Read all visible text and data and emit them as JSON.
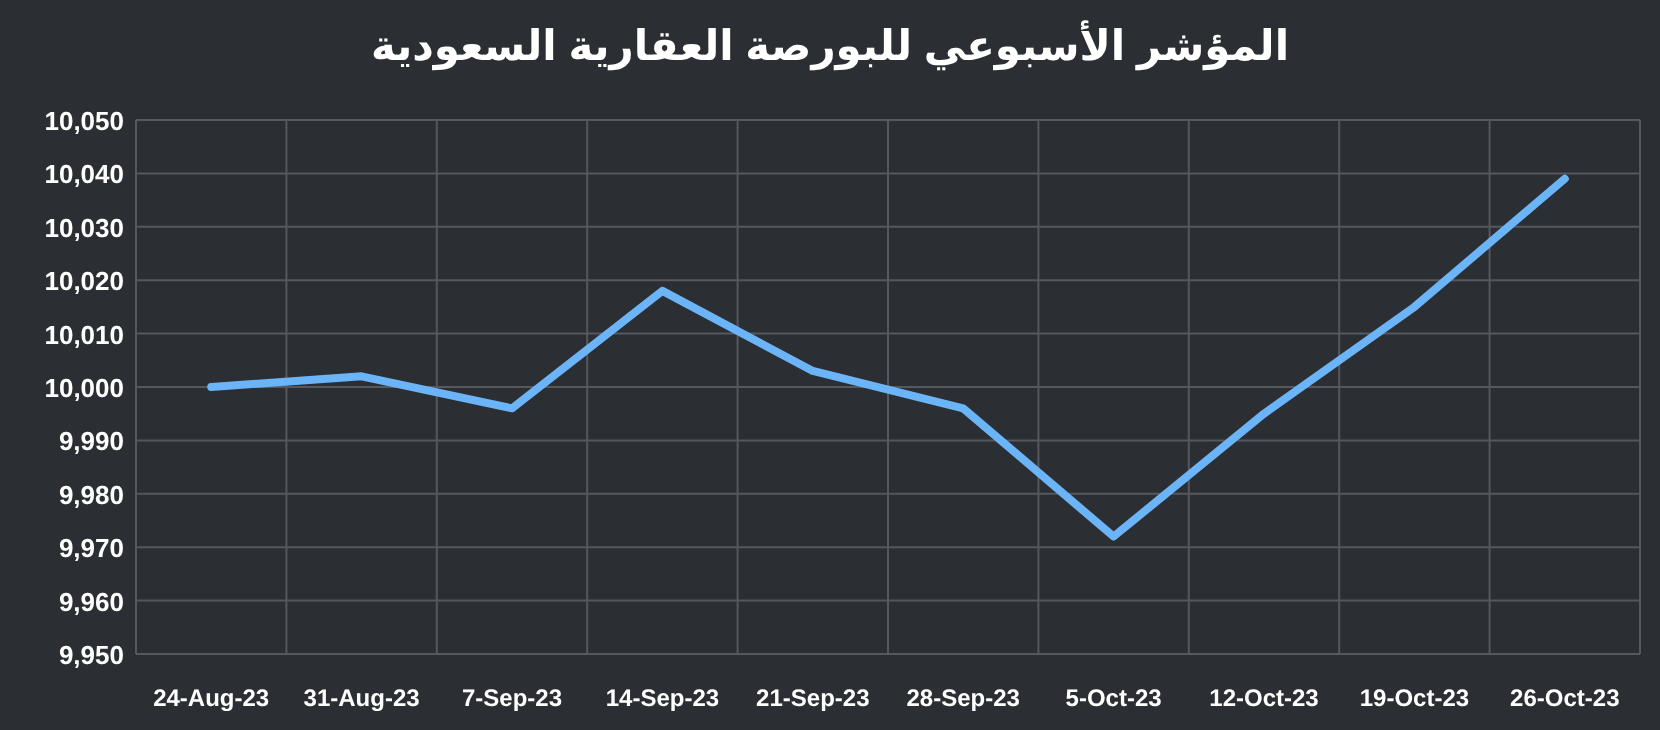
{
  "chart_data": {
    "type": "line",
    "title": "المؤشر الأسبوعي للبورصة العقارية السعودية",
    "categories": [
      "24-Aug-23",
      "31-Aug-23",
      "7-Sep-23",
      "14-Sep-23",
      "21-Sep-23",
      "28-Sep-23",
      "5-Oct-23",
      "12-Oct-23",
      "19-Oct-23",
      "26-Oct-23"
    ],
    "series": [
      {
        "color": "#6cb4f8",
        "values": [
          10000,
          10002,
          9996,
          10018,
          10003,
          9996,
          9972,
          9995,
          10015,
          10039
        ]
      }
    ],
    "ylim": [
      9950,
      10050
    ],
    "yticks": [
      {
        "value": 9950,
        "label": "9,950"
      },
      {
        "value": 9960,
        "label": "9,960"
      },
      {
        "value": 9970,
        "label": "9,970"
      },
      {
        "value": 9980,
        "label": "9,980"
      },
      {
        "value": 9990,
        "label": "9,990"
      },
      {
        "value": 10000,
        "label": "10,000"
      },
      {
        "value": 10010,
        "label": "10,010"
      },
      {
        "value": 10020,
        "label": "10,020"
      },
      {
        "value": 10030,
        "label": "10,030"
      },
      {
        "value": 10040,
        "label": "10,040"
      },
      {
        "value": 10050,
        "label": "10,050"
      }
    ],
    "grid": true,
    "marker": "none",
    "line_style": "solid"
  }
}
